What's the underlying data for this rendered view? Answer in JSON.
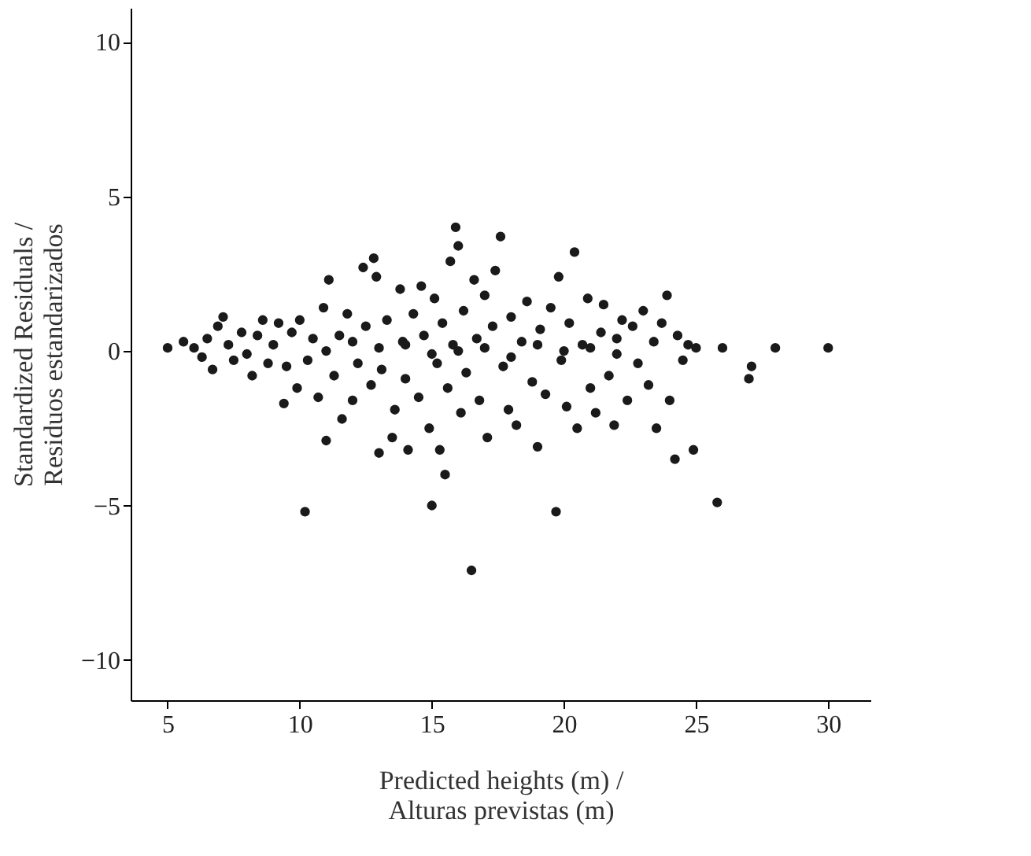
{
  "chart_data": {
    "type": "scatter",
    "xlabel": "Predicted heights (m) /\nAlturas previstas (m)",
    "ylabel": "Standardized Residuals /\nResiduos estandarizados",
    "xlim": [
      3.6,
      31.6
    ],
    "xticks": [
      5,
      10,
      15,
      20,
      25,
      30
    ],
    "ylim": [
      -11.3,
      11.1
    ],
    "yticks": [
      -10,
      -5,
      0,
      5,
      10
    ],
    "grid": false,
    "marker": "circle",
    "series": [
      {
        "color": "#1a1a1a",
        "x": [
          5,
          5.6,
          6,
          6.3,
          6.5,
          6.7,
          6.9,
          7.1,
          7.3,
          7.5,
          7.8,
          8,
          8.2,
          8.4,
          8.6,
          8.8,
          9,
          9.2,
          9.4,
          9.5,
          9.7,
          9.9,
          10,
          10.2,
          10.3,
          10.5,
          10.7,
          10.9,
          11,
          11.1,
          11.3,
          11.5,
          11.6,
          11.8,
          12,
          12.2,
          12.4,
          12.5,
          12.7,
          12.8,
          12.9,
          13,
          13.1,
          13.3,
          13.5,
          13.6,
          13.8,
          13.9,
          14,
          14.1,
          14.3,
          14.5,
          14.6,
          14.7,
          14.9,
          15,
          15.1,
          15.2,
          15.3,
          15.4,
          15.5,
          15.6,
          15.7,
          15.8,
          15.9,
          16,
          16.1,
          16.2,
          16.3,
          16.5,
          16.6,
          16.7,
          16.8,
          17,
          17.1,
          17.3,
          17.4,
          17.6,
          17.7,
          17.9,
          18,
          18.2,
          18.4,
          18.6,
          18.8,
          19,
          19.1,
          19.3,
          19.5,
          19.7,
          19.8,
          19.9,
          20.1,
          20.2,
          20.4,
          20.5,
          20.7,
          20.9,
          21,
          21.2,
          21.4,
          21.5,
          21.7,
          21.9,
          22,
          22.2,
          22.4,
          22.6,
          22.8,
          23,
          23.2,
          23.4,
          23.5,
          23.7,
          23.9,
          24,
          24.2,
          24.3,
          24.5,
          24.7,
          24.9,
          25,
          25.8,
          26,
          27,
          27.1,
          28,
          30,
          13,
          14,
          15,
          16,
          17,
          18,
          19,
          20,
          21,
          22,
          12,
          11
        ],
        "values": [
          0.1,
          0.3,
          0.1,
          -0.2,
          0.4,
          -0.6,
          0.8,
          1.1,
          0.2,
          -0.3,
          0.6,
          -0.1,
          -0.8,
          0.5,
          1.0,
          -0.4,
          0.2,
          0.9,
          -1.7,
          -0.5,
          0.6,
          -1.2,
          1.0,
          -5.2,
          -0.3,
          0.4,
          -1.5,
          1.4,
          -2.9,
          2.3,
          -0.8,
          0.5,
          -2.2,
          1.2,
          -1.6,
          -0.4,
          2.7,
          0.8,
          -1.1,
          3.0,
          2.4,
          -3.3,
          -0.6,
          1.0,
          -2.8,
          -1.9,
          2.0,
          0.3,
          -0.9,
          -3.2,
          1.2,
          -1.5,
          2.1,
          0.5,
          -2.5,
          -5.0,
          1.7,
          -0.4,
          -3.2,
          0.9,
          -4.0,
          -1.2,
          2.9,
          0.2,
          4.0,
          3.4,
          -2.0,
          1.3,
          -0.7,
          -7.1,
          2.3,
          0.4,
          -1.6,
          1.8,
          -2.8,
          0.8,
          2.6,
          3.7,
          -0.5,
          -1.9,
          1.1,
          -2.4,
          0.3,
          1.6,
          -1.0,
          -3.1,
          0.7,
          -1.4,
          1.4,
          -5.2,
          2.4,
          -0.3,
          -1.8,
          0.9,
          3.2,
          -2.5,
          0.2,
          1.7,
          -1.2,
          -2.0,
          0.6,
          1.5,
          -0.8,
          -2.4,
          0.4,
          1.0,
          -1.6,
          0.8,
          -0.4,
          1.3,
          -1.1,
          0.3,
          -2.5,
          0.9,
          1.8,
          -1.6,
          -3.5,
          0.5,
          -0.3,
          0.2,
          -3.2,
          0.1,
          -4.9,
          0.1,
          -0.9,
          -0.5,
          0.1,
          0.1,
          0.1,
          0.2,
          -0.1,
          0.0,
          0.1,
          -0.2,
          0.2,
          0.0,
          0.1,
          -0.1,
          0.3,
          0.0
        ]
      }
    ]
  }
}
